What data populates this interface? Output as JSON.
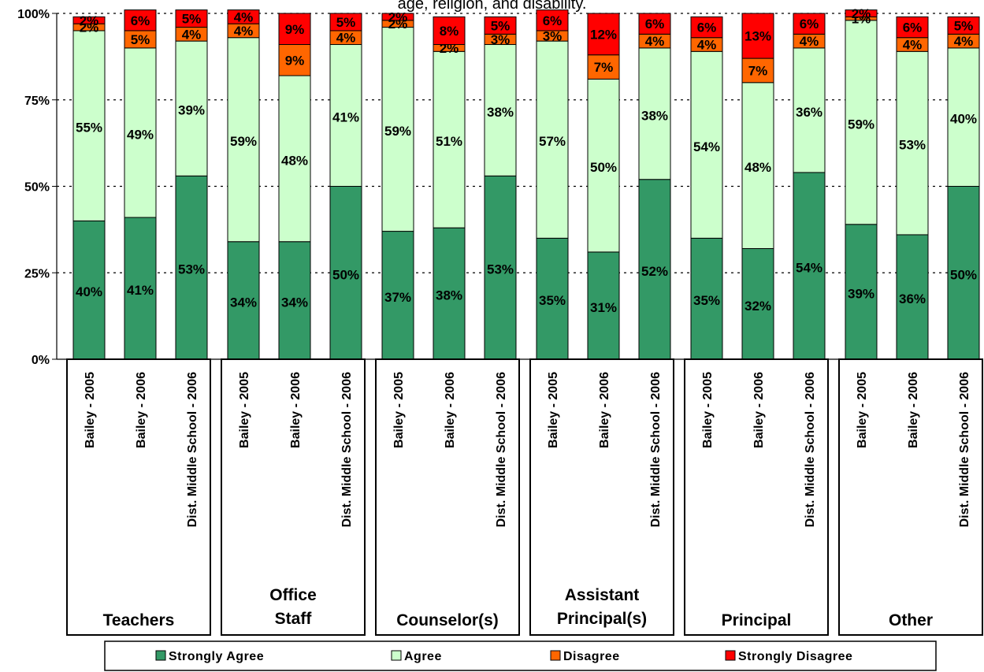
{
  "chart_data": {
    "type": "bar",
    "stacked": true,
    "title": "age, religion, and disability.",
    "ylim": [
      0,
      100
    ],
    "y_ticks": [
      "0%",
      "25%",
      "50%",
      "75%",
      "100%"
    ],
    "grid": "dotted horizontal",
    "bar_labels": [
      "Bailey - 2005",
      "Bailey - 2006",
      "Dist. Middle School - 2006"
    ],
    "groups": [
      {
        "name": "Teachers",
        "label_lines": [
          "Teachers"
        ]
      },
      {
        "name": "Office Staff",
        "label_lines": [
          "Office",
          "Staff"
        ]
      },
      {
        "name": "Counselor(s)",
        "label_lines": [
          "Counselor(s)"
        ]
      },
      {
        "name": "Assistant Principal(s)",
        "label_lines": [
          "Assistant",
          "Principal(s)"
        ]
      },
      {
        "name": "Principal",
        "label_lines": [
          "Principal"
        ]
      },
      {
        "name": "Other",
        "label_lines": [
          "Other"
        ]
      }
    ],
    "series": [
      {
        "name": "Strongly Agree",
        "color": "#339966",
        "values": [
          40,
          41,
          53,
          34,
          34,
          50,
          37,
          38,
          53,
          35,
          31,
          52,
          35,
          32,
          54,
          39,
          36,
          50
        ]
      },
      {
        "name": "Agree",
        "color": "#ccffcc",
        "values": [
          55,
          49,
          39,
          59,
          48,
          41,
          59,
          51,
          38,
          57,
          50,
          38,
          54,
          48,
          36,
          59,
          53,
          40
        ]
      },
      {
        "name": "Disagree",
        "color": "#ff6600",
        "values": [
          2,
          5,
          4,
          4,
          9,
          4,
          2,
          2,
          3,
          3,
          7,
          4,
          4,
          7,
          4,
          1,
          4,
          4
        ]
      },
      {
        "name": "Strongly Disagree",
        "color": "#ff0000",
        "values": [
          2,
          6,
          5,
          4,
          9,
          5,
          2,
          8,
          5,
          6,
          12,
          6,
          6,
          13,
          6,
          2,
          6,
          5
        ]
      }
    ],
    "legend_position": "bottom"
  }
}
